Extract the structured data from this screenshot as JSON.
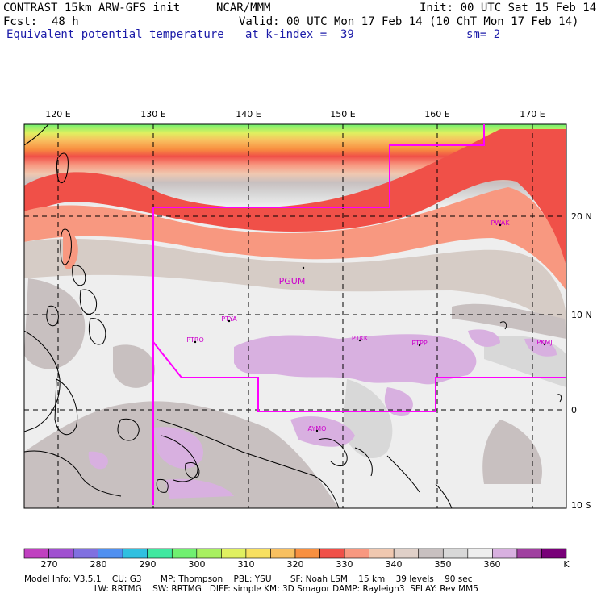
{
  "header": {
    "model_title": "CONTRAST 15km ARW-GFS init",
    "center": "NCAR/MMM",
    "init": "Init: 00 UTC Sat 15 Feb 14",
    "fcst_label": "Fcst:",
    "fcst_value": "48 h",
    "valid": "Valid: 00 UTC Mon 17 Feb 14 (10 ChT Mon 17 Feb 14)",
    "field": "Equivalent potential temperature",
    "level": "at k-index =  39",
    "smoothing": "sm= 2"
  },
  "map": {
    "lon_labels": [
      "120 E",
      "130 E",
      "140 E",
      "150 E",
      "160 E",
      "170 E"
    ],
    "lat_labels": [
      "20 N",
      "10 N",
      "0",
      "10 S"
    ],
    "stations": [
      {
        "id": "PGUM",
        "big": true
      },
      {
        "id": "PWAK",
        "big": false
      },
      {
        "id": "PTYA",
        "big": false
      },
      {
        "id": "PTRO",
        "big": false
      },
      {
        "id": "PTKK",
        "big": false
      },
      {
        "id": "PTPP",
        "big": false
      },
      {
        "id": "PKMJ",
        "big": false
      },
      {
        "id": "AYMO",
        "big": false
      }
    ],
    "boundary_color": "#ff00ff"
  },
  "colorbar": {
    "units": "K",
    "colors": [
      "#c040c0",
      "#a050d0",
      "#8070e0",
      "#5090f0",
      "#30c0e0",
      "#40e8a0",
      "#70f070",
      "#a8f060",
      "#e0f060",
      "#f8e060",
      "#f8c060",
      "#f89040",
      "#f05048",
      "#f89880",
      "#f0c8b0",
      "#e0d0c8",
      "#c8c0c0",
      "#d8d8d8",
      "#eeeeee",
      "#d8b0e0",
      "#a040a0",
      "#780078"
    ],
    "labels": [
      "270",
      "280",
      "290",
      "300",
      "310",
      "320",
      "330",
      "340",
      "350",
      "360"
    ]
  },
  "footer": {
    "line1": "Model Info: V3.5.1    CU: G3       MP: Thompson    PBL: YSU       SF: Noah LSM    15 km    39 levels    90 sec",
    "line2": "                          LW: RRTMG    SW: RRTMG   DIFF: simple KM: 3D Smagor DAMP: Rayleigh3  SFLAY: Rev MM5"
  }
}
